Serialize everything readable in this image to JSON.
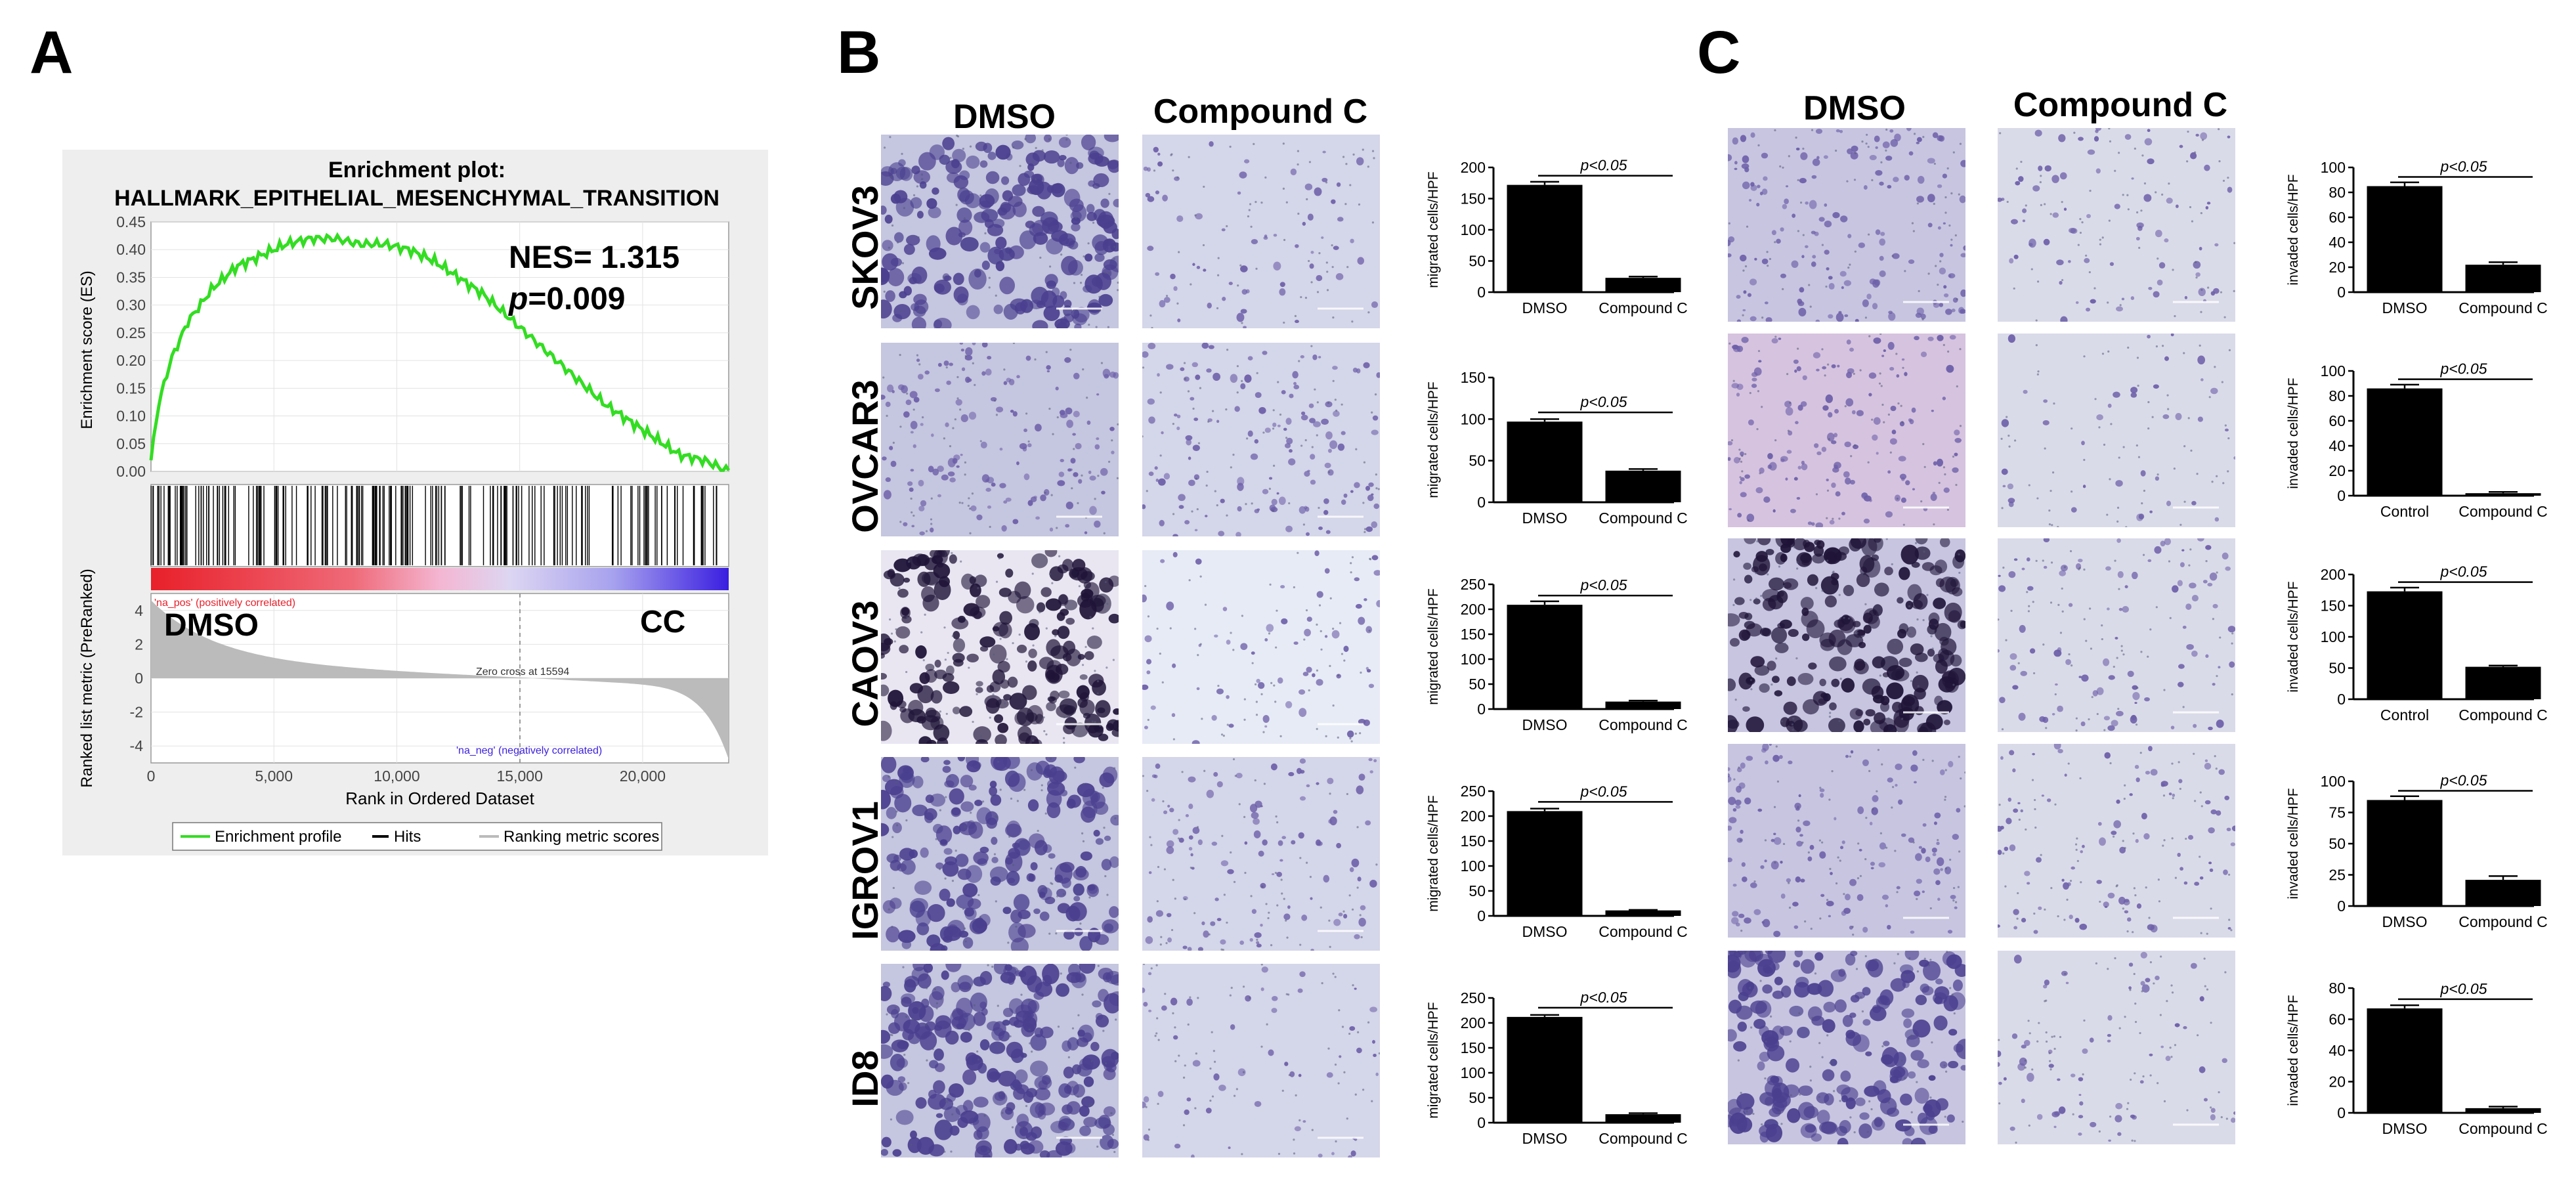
{
  "panels": {
    "A": "A",
    "B": "B",
    "C": "C"
  },
  "gsea": {
    "title_line1": "Enrichment plot:",
    "title_line2": "HALLMARK_EPITHELIAL_MESENCHYMAL_TRANSITION",
    "nes": "NES= 1.315",
    "p_italic": "p",
    "p_value": "=0.009",
    "es_ylabel": "Enrichment score (ES)",
    "es_ticks": [
      "0.45",
      "0.40",
      "0.35",
      "0.30",
      "0.25",
      "0.20",
      "0.15",
      "0.10",
      "0.05",
      "0.00"
    ],
    "pos_label": "'na_pos' (positively correlated)",
    "neg_label": "'na_neg' (negatively correlated)",
    "left_group": "DMSO",
    "right_group": "CC",
    "zero_cross": "Zero cross at 15594",
    "rank_ylabel": "Ranked list metric (PreRanked)",
    "rank_ticks": [
      "4",
      "2",
      "0",
      "-2",
      "-4"
    ],
    "x_ticks": [
      "0",
      "5,000",
      "10,000",
      "15,000",
      "20,000"
    ],
    "xlabel": "Rank in Ordered Dataset",
    "legend": [
      "Enrichment profile",
      "Hits",
      "Ranking metric scores"
    ],
    "colors": {
      "profile": "#33dd22",
      "hits": "#000000",
      "pos": "#e8202a",
      "neg": "#3a1ee0",
      "metric": "#bbbbbb"
    }
  },
  "panel_b": {
    "col_dmso": "DMSO",
    "col_cc": "Compound C",
    "rows": [
      {
        "cell": "SKOV3",
        "ylabel": "migrated cells/HPF",
        "sig": "p<0.05"
      },
      {
        "cell": "OVCAR3",
        "ylabel": "migrated cells/HPF",
        "sig": "p<0.05"
      },
      {
        "cell": "CAOV3",
        "ylabel": "migrated cells/HPF",
        "sig": "p<0.05"
      },
      {
        "cell": "IGROV1",
        "ylabel": "migrated cells/HPF",
        "sig": "p<0.05"
      },
      {
        "cell": "ID8",
        "ylabel": "migrated cells/HPF",
        "sig": "p<0.05"
      }
    ]
  },
  "panel_c": {
    "col_dmso": "DMSO",
    "col_cc": "Compound C",
    "rows": [
      {
        "ylabel": "invaded cells/HPF",
        "sig": "p<0.05"
      },
      {
        "ylabel": "invaded cells/HPF",
        "sig": "p<0.05"
      },
      {
        "ylabel": "invaded cells/HPF",
        "sig": "p<0.05"
      },
      {
        "ylabel": "invaded cells/HPF",
        "sig": "p<0.05"
      },
      {
        "ylabel": "invaded cells/HPF",
        "sig": "p<0.05"
      }
    ]
  },
  "chart_data": [
    {
      "type": "line",
      "title": "Enrichment plot: HALLMARK_EPITHELIAL_MESENCHYMAL_TRANSITION",
      "xlabel": "Rank in Ordered Dataset",
      "ylabel": "Enrichment score (ES)",
      "xlim": [
        0,
        23500
      ],
      "ylim": [
        0,
        0.45
      ],
      "x": [
        0,
        300,
        800,
        1500,
        2500,
        3500,
        4500,
        5500,
        6500,
        7500,
        8500,
        9500,
        10500,
        11500,
        12500,
        13500,
        14500,
        15500,
        16500,
        17500,
        18500,
        19500,
        20500,
        21500,
        22500,
        23500
      ],
      "y": [
        0.02,
        0.12,
        0.2,
        0.27,
        0.33,
        0.37,
        0.39,
        0.41,
        0.42,
        0.42,
        0.41,
        0.41,
        0.4,
        0.38,
        0.35,
        0.32,
        0.28,
        0.24,
        0.2,
        0.16,
        0.12,
        0.09,
        0.06,
        0.03,
        0.02,
        0.0
      ]
    },
    {
      "type": "bar",
      "cell_line": "SKOV3",
      "ylabel": "migrated cells/HPF",
      "categories": [
        "DMSO",
        "Compound C"
      ],
      "values": [
        172,
        23
      ],
      "errors": [
        5,
        2
      ],
      "ylim": [
        0,
        200
      ],
      "yticks": [
        0,
        50,
        100,
        150,
        200
      ]
    },
    {
      "type": "bar",
      "cell_line": "OVCAR3",
      "ylabel": "migrated cells/HPF",
      "categories": [
        "DMSO",
        "Compound C"
      ],
      "values": [
        97,
        38
      ],
      "errors": [
        3,
        2
      ],
      "ylim": [
        0,
        150
      ],
      "yticks": [
        0,
        50,
        100,
        150
      ]
    },
    {
      "type": "bar",
      "cell_line": "CAOV3",
      "ylabel": "migrated cells/HPF",
      "categories": [
        "DMSO",
        "Compound C"
      ],
      "values": [
        209,
        15
      ],
      "errors": [
        7,
        2
      ],
      "ylim": [
        0,
        250
      ],
      "yticks": [
        0,
        50,
        100,
        150,
        200,
        250
      ]
    },
    {
      "type": "bar",
      "cell_line": "IGROV1",
      "ylabel": "migrated cells/HPF",
      "categories": [
        "DMSO",
        "Compound C"
      ],
      "values": [
        210,
        11
      ],
      "errors": [
        5,
        1
      ],
      "ylim": [
        0,
        250
      ],
      "yticks": [
        0,
        50,
        100,
        150,
        200,
        250
      ]
    },
    {
      "type": "bar",
      "cell_line": "ID8",
      "ylabel": "migrated cells/HPF",
      "categories": [
        "DMSO",
        "Compound C"
      ],
      "values": [
        212,
        17
      ],
      "errors": [
        4,
        2
      ],
      "ylim": [
        0,
        250
      ],
      "yticks": [
        0,
        50,
        100,
        150,
        200,
        250
      ]
    },
    {
      "type": "bar",
      "ylabel": "invaded cells/HPF",
      "categories": [
        "DMSO",
        "Compound C"
      ],
      "values": [
        85,
        22
      ],
      "errors": [
        3,
        2
      ],
      "ylim": [
        0,
        100
      ],
      "yticks": [
        0,
        20,
        40,
        60,
        80,
        100
      ]
    },
    {
      "type": "bar",
      "ylabel": "invaded cells/HPF",
      "categories": [
        "Control",
        "Compound C"
      ],
      "values": [
        86,
        2
      ],
      "errors": [
        3,
        1
      ],
      "ylim": [
        0,
        100
      ],
      "yticks": [
        0,
        20,
        40,
        60,
        80,
        100
      ]
    },
    {
      "type": "bar",
      "ylabel": "invaded cells/HPF",
      "categories": [
        "Control",
        "Compound C"
      ],
      "values": [
        173,
        52
      ],
      "errors": [
        6,
        2
      ],
      "ylim": [
        0,
        200
      ],
      "yticks": [
        0,
        50,
        100,
        150,
        200
      ]
    },
    {
      "type": "bar",
      "ylabel": "invaded cells/HPF",
      "categories": [
        "DMSO",
        "Compound C"
      ],
      "values": [
        85,
        21
      ],
      "errors": [
        3,
        3
      ],
      "ylim": [
        0,
        100
      ],
      "yticks": [
        0,
        25,
        50,
        75,
        100
      ]
    },
    {
      "type": "bar",
      "ylabel": "invaded cells/HPF",
      "categories": [
        "DMSO",
        "Compound C"
      ],
      "values": [
        67,
        3
      ],
      "errors": [
        2,
        1
      ],
      "ylim": [
        0,
        80
      ],
      "yticks": [
        0,
        20,
        40,
        60,
        80
      ]
    }
  ]
}
